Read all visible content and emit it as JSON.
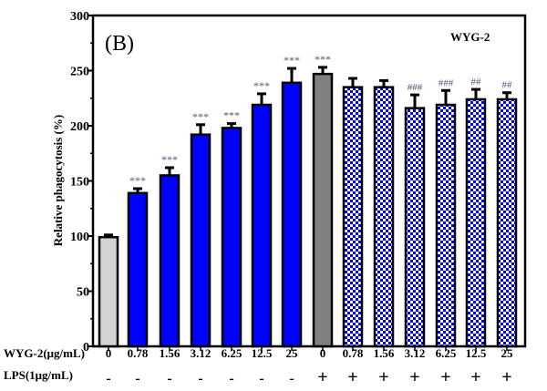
{
  "chart_data": {
    "type": "bar",
    "panel_label": "(B)",
    "legend_text": "WYG-2",
    "ylabel": "Relative phagocytosis (%)",
    "ylim": [
      0,
      300
    ],
    "yticks": [
      0,
      50,
      100,
      150,
      200,
      250,
      300
    ],
    "row_labels": {
      "wyg": "WYG-2(μg/mL)",
      "lps": "LPS(1μg/mL)"
    },
    "wyg_conc": [
      "0",
      "0.78",
      "1.56",
      "3.12",
      "6.25",
      "12.5",
      "25",
      "0",
      "0.78",
      "1.56",
      "3.12",
      "6.25",
      "12.5",
      "25"
    ],
    "lps": [
      "-",
      "-",
      "-",
      "-",
      "-",
      "-",
      "-",
      "+",
      "+",
      "+",
      "+",
      "+",
      "+",
      "+"
    ],
    "values": [
      99,
      139,
      155,
      192,
      198,
      219,
      239,
      247,
      235,
      235,
      216,
      219,
      224,
      224
    ],
    "errors": [
      2,
      4,
      7,
      9,
      4,
      10,
      13,
      6,
      8,
      6,
      12,
      13,
      9,
      6
    ],
    "significance": [
      "",
      "***",
      "***",
      "***",
      "***",
      "***",
      "***",
      "***",
      "",
      "",
      "###",
      "###",
      "##",
      "##"
    ],
    "fills": [
      "light-gray",
      "blue",
      "blue",
      "blue",
      "blue",
      "blue",
      "blue",
      "gray",
      "blue-checker",
      "blue-checker",
      "blue-checker",
      "blue-checker",
      "blue-checker",
      "blue-checker"
    ],
    "colors": {
      "light-gray": "#d3d3d3",
      "blue": "#0000ff",
      "gray": "#808080",
      "star": "#555577"
    }
  }
}
